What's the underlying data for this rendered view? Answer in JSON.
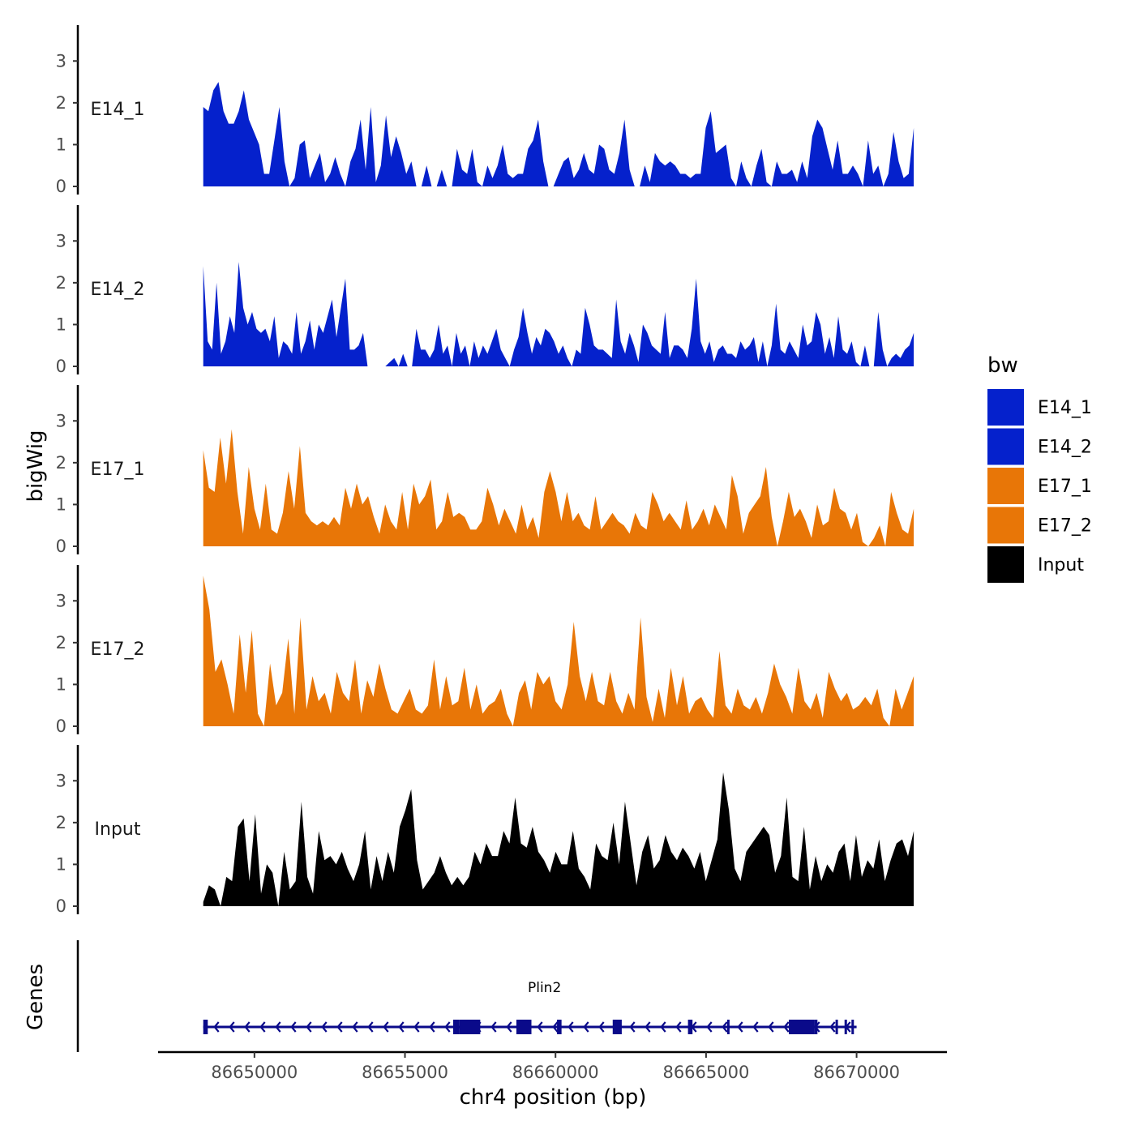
{
  "chart_data": {
    "type": "area",
    "xlabel": "chr4 position (bp)",
    "ylabel": "bigWig",
    "genes_label": "Genes",
    "xlim": [
      86646800,
      86673000
    ],
    "xticks": [
      86650000,
      86655000,
      86660000,
      86665000,
      86670000
    ],
    "xtick_labels": [
      "86650000",
      "86655000",
      "86660000",
      "86665000",
      "86670000"
    ],
    "ylim": [
      0,
      3.8
    ],
    "yticks": [
      0,
      1,
      2,
      3
    ],
    "ytick_labels": [
      "0",
      "1",
      "2",
      "3"
    ],
    "legend": {
      "title": "bw",
      "entries": [
        {
          "label": "E14_1",
          "color": "#0521CC"
        },
        {
          "label": "E14_2",
          "color": "#0521CC"
        },
        {
          "label": "E17_1",
          "color": "#E87607"
        },
        {
          "label": "E17_2",
          "color": "#E87607"
        },
        {
          "label": "Input",
          "color": "#000000"
        }
      ]
    },
    "series": [
      {
        "name": "E14_1",
        "color": "#0521CC",
        "x_start": 86648300,
        "x_end": 86671900,
        "values": [
          1.9,
          1.8,
          2.3,
          2.5,
          1.8,
          1.5,
          1.5,
          1.8,
          2.3,
          1.6,
          1.3,
          1.0,
          0.3,
          0.3,
          1.1,
          1.9,
          0.6,
          0.0,
          0.2,
          1.0,
          1.1,
          0.2,
          0.5,
          0.8,
          0.1,
          0.3,
          0.7,
          0.3,
          0.0,
          0.6,
          0.9,
          1.6,
          0.4,
          1.9,
          0.1,
          0.5,
          1.7,
          0.7,
          1.2,
          0.8,
          0.3,
          0.6,
          0.0,
          0.0,
          0.5,
          0.0,
          0.0,
          0.4,
          0.0,
          0.0,
          0.9,
          0.4,
          0.3,
          0.9,
          0.1,
          0.0,
          0.5,
          0.2,
          0.5,
          1.0,
          0.3,
          0.2,
          0.3,
          0.3,
          0.9,
          1.1,
          1.6,
          0.6,
          0.0,
          0.0,
          0.3,
          0.6,
          0.7,
          0.2,
          0.4,
          0.8,
          0.4,
          0.3,
          1.0,
          0.9,
          0.4,
          0.3,
          0.8,
          1.6,
          0.4,
          0.0,
          0.0,
          0.5,
          0.1,
          0.8,
          0.6,
          0.5,
          0.6,
          0.5,
          0.3,
          0.3,
          0.2,
          0.3,
          0.3,
          1.4,
          1.8,
          0.8,
          0.9,
          1.0,
          0.2,
          0.0,
          0.6,
          0.2,
          0.0,
          0.5,
          0.9,
          0.1,
          0.0,
          0.6,
          0.3,
          0.3,
          0.4,
          0.1,
          0.6,
          0.2,
          1.2,
          1.6,
          1.4,
          0.9,
          0.4,
          1.1,
          0.3,
          0.3,
          0.5,
          0.3,
          0.0,
          1.1,
          0.3,
          0.5,
          0.0,
          0.3,
          1.3,
          0.6,
          0.2,
          0.3,
          1.4
        ]
      },
      {
        "name": "E14_2",
        "color": "#0521CC",
        "x_start": 86648300,
        "x_end": 86671900,
        "values": [
          2.4,
          0.6,
          0.4,
          2.0,
          0.3,
          0.6,
          1.2,
          0.8,
          2.5,
          1.4,
          1.0,
          1.3,
          0.9,
          0.8,
          0.9,
          0.6,
          1.2,
          0.2,
          0.6,
          0.5,
          0.3,
          1.3,
          0.3,
          0.6,
          1.1,
          0.4,
          1.0,
          0.8,
          1.2,
          1.6,
          0.7,
          1.4,
          2.1,
          0.4,
          0.4,
          0.5,
          0.8,
          0.0,
          0.0,
          0.0,
          0.0,
          0.0,
          0.1,
          0.2,
          0.0,
          0.3,
          0.0,
          0.0,
          0.9,
          0.4,
          0.4,
          0.2,
          0.4,
          1.0,
          0.3,
          0.5,
          0.0,
          0.8,
          0.3,
          0.5,
          0.0,
          0.6,
          0.2,
          0.5,
          0.3,
          0.6,
          0.9,
          0.4,
          0.2,
          0.0,
          0.4,
          0.7,
          1.4,
          0.8,
          0.3,
          0.7,
          0.5,
          0.9,
          0.8,
          0.6,
          0.3,
          0.5,
          0.2,
          0.0,
          0.4,
          0.3,
          1.4,
          1.0,
          0.5,
          0.4,
          0.4,
          0.3,
          0.2,
          1.6,
          0.6,
          0.3,
          0.8,
          0.5,
          0.1,
          1.0,
          0.8,
          0.5,
          0.4,
          0.3,
          1.3,
          0.2,
          0.5,
          0.5,
          0.4,
          0.2,
          0.9,
          2.1,
          0.6,
          0.3,
          0.6,
          0.1,
          0.4,
          0.5,
          0.3,
          0.3,
          0.2,
          0.6,
          0.4,
          0.5,
          0.7,
          0.1,
          0.6,
          0.0,
          0.5,
          1.5,
          0.4,
          0.3,
          0.6,
          0.4,
          0.2,
          1.0,
          0.5,
          0.6,
          1.3,
          1.0,
          0.3,
          0.7,
          0.2,
          1.2,
          0.4,
          0.3,
          0.6,
          0.1,
          0.0,
          0.5,
          0.0,
          0.0,
          1.3,
          0.4,
          0.0,
          0.2,
          0.3,
          0.2,
          0.4,
          0.5,
          0.8
        ]
      },
      {
        "name": "E17_1",
        "color": "#E87607",
        "x_start": 86648300,
        "x_end": 86671900,
        "values": [
          2.3,
          1.4,
          1.3,
          2.6,
          1.5,
          2.8,
          1.3,
          0.3,
          1.9,
          0.9,
          0.4,
          1.5,
          0.4,
          0.3,
          0.8,
          1.8,
          0.9,
          2.4,
          0.8,
          0.6,
          0.5,
          0.6,
          0.5,
          0.7,
          0.5,
          1.4,
          0.9,
          1.5,
          1.0,
          1.2,
          0.7,
          0.3,
          1.0,
          0.6,
          0.4,
          1.3,
          0.4,
          1.5,
          1.0,
          1.2,
          1.6,
          0.4,
          0.6,
          1.3,
          0.7,
          0.8,
          0.7,
          0.4,
          0.4,
          0.6,
          1.4,
          1.0,
          0.5,
          0.9,
          0.6,
          0.3,
          1.0,
          0.4,
          0.7,
          0.2,
          1.3,
          1.8,
          1.3,
          0.6,
          1.3,
          0.6,
          0.8,
          0.5,
          0.4,
          1.2,
          0.4,
          0.6,
          0.8,
          0.6,
          0.5,
          0.3,
          0.8,
          0.5,
          0.4,
          1.3,
          1.0,
          0.6,
          0.8,
          0.6,
          0.4,
          1.1,
          0.4,
          0.6,
          0.9,
          0.5,
          1.0,
          0.7,
          0.4,
          1.7,
          1.2,
          0.3,
          0.8,
          1.0,
          1.2,
          1.9,
          0.7,
          0.0,
          0.6,
          1.3,
          0.7,
          0.9,
          0.6,
          0.2,
          1.0,
          0.5,
          0.6,
          1.4,
          0.9,
          0.8,
          0.4,
          0.8,
          0.1,
          0.0,
          0.2,
          0.5,
          0.0,
          1.3,
          0.8,
          0.4,
          0.3,
          0.9
        ]
      },
      {
        "name": "E17_2",
        "color": "#E87607",
        "x_start": 86648300,
        "x_end": 86671900,
        "values": [
          3.6,
          2.8,
          1.3,
          1.6,
          1.0,
          0.3,
          2.2,
          0.8,
          2.3,
          0.3,
          0.0,
          1.5,
          0.5,
          0.8,
          2.1,
          0.3,
          2.6,
          0.4,
          1.2,
          0.6,
          0.8,
          0.3,
          1.3,
          0.8,
          0.6,
          1.6,
          0.3,
          1.1,
          0.7,
          1.5,
          0.9,
          0.4,
          0.3,
          0.6,
          0.9,
          0.4,
          0.3,
          0.5,
          1.6,
          0.4,
          1.2,
          0.5,
          0.6,
          1.4,
          0.4,
          1.0,
          0.3,
          0.5,
          0.6,
          0.9,
          0.3,
          0.0,
          0.8,
          1.1,
          0.4,
          1.3,
          1.0,
          1.2,
          0.6,
          0.4,
          1.0,
          2.5,
          1.2,
          0.6,
          1.3,
          0.6,
          0.5,
          1.3,
          0.6,
          0.3,
          0.8,
          0.4,
          2.6,
          0.7,
          0.1,
          0.9,
          0.2,
          1.4,
          0.5,
          1.2,
          0.3,
          0.6,
          0.7,
          0.4,
          0.2,
          1.8,
          0.5,
          0.3,
          0.9,
          0.5,
          0.4,
          0.7,
          0.3,
          0.8,
          1.5,
          1.0,
          0.7,
          0.3,
          1.4,
          0.6,
          0.4,
          0.8,
          0.2,
          1.3,
          0.9,
          0.6,
          0.8,
          0.4,
          0.5,
          0.7,
          0.5,
          0.9,
          0.2,
          0.0,
          0.9,
          0.4,
          0.8,
          1.2
        ]
      },
      {
        "name": "Input",
        "color": "#000000",
        "x_start": 86648300,
        "x_end": 86671900,
        "values": [
          0.1,
          0.5,
          0.4,
          0.0,
          0.7,
          0.6,
          1.9,
          2.1,
          0.6,
          2.2,
          0.3,
          1.0,
          0.8,
          0.0,
          1.3,
          0.4,
          0.6,
          2.5,
          0.7,
          0.3,
          1.8,
          1.1,
          1.2,
          1.0,
          1.3,
          0.9,
          0.6,
          1.0,
          1.8,
          0.4,
          1.2,
          0.6,
          1.3,
          0.8,
          1.9,
          2.3,
          2.8,
          1.1,
          0.4,
          0.6,
          0.8,
          1.2,
          0.8,
          0.5,
          0.7,
          0.5,
          0.7,
          1.3,
          1.0,
          1.5,
          1.2,
          1.2,
          1.8,
          1.5,
          2.6,
          1.5,
          1.4,
          1.9,
          1.3,
          1.1,
          0.8,
          1.3,
          1.0,
          1.0,
          1.8,
          0.9,
          0.7,
          0.4,
          1.5,
          1.2,
          1.1,
          2.0,
          1.0,
          2.5,
          1.5,
          0.5,
          1.3,
          1.7,
          0.9,
          1.1,
          1.7,
          1.3,
          1.1,
          1.4,
          1.2,
          0.9,
          1.3,
          0.6,
          1.1,
          1.6,
          3.2,
          2.3,
          0.9,
          0.6,
          1.3,
          1.5,
          1.7,
          1.9,
          1.7,
          0.8,
          1.2,
          2.6,
          0.7,
          0.6,
          1.9,
          0.4,
          1.2,
          0.6,
          1.0,
          0.8,
          1.3,
          1.5,
          0.6,
          1.7,
          0.7,
          1.1,
          0.9,
          1.6,
          0.6,
          1.1,
          1.5,
          1.6,
          1.2,
          1.8
        ]
      }
    ],
    "genes": [
      {
        "name": "Plin2",
        "strand": "-",
        "start": 86648300,
        "end": 86670000,
        "exons": [
          [
            86648300,
            86648450
          ],
          [
            86656600,
            86656800
          ],
          [
            86656800,
            86657500
          ],
          [
            86658700,
            86659200
          ],
          [
            86660050,
            86660200
          ],
          [
            86661900,
            86662200
          ],
          [
            86664400,
            86664550
          ],
          [
            86665700,
            86665760
          ],
          [
            86667750,
            86668600
          ],
          [
            86668600,
            86668700
          ],
          [
            86669300,
            86669380
          ],
          [
            86669600,
            86669680
          ],
          [
            86669830,
            86669910
          ]
        ]
      }
    ]
  }
}
